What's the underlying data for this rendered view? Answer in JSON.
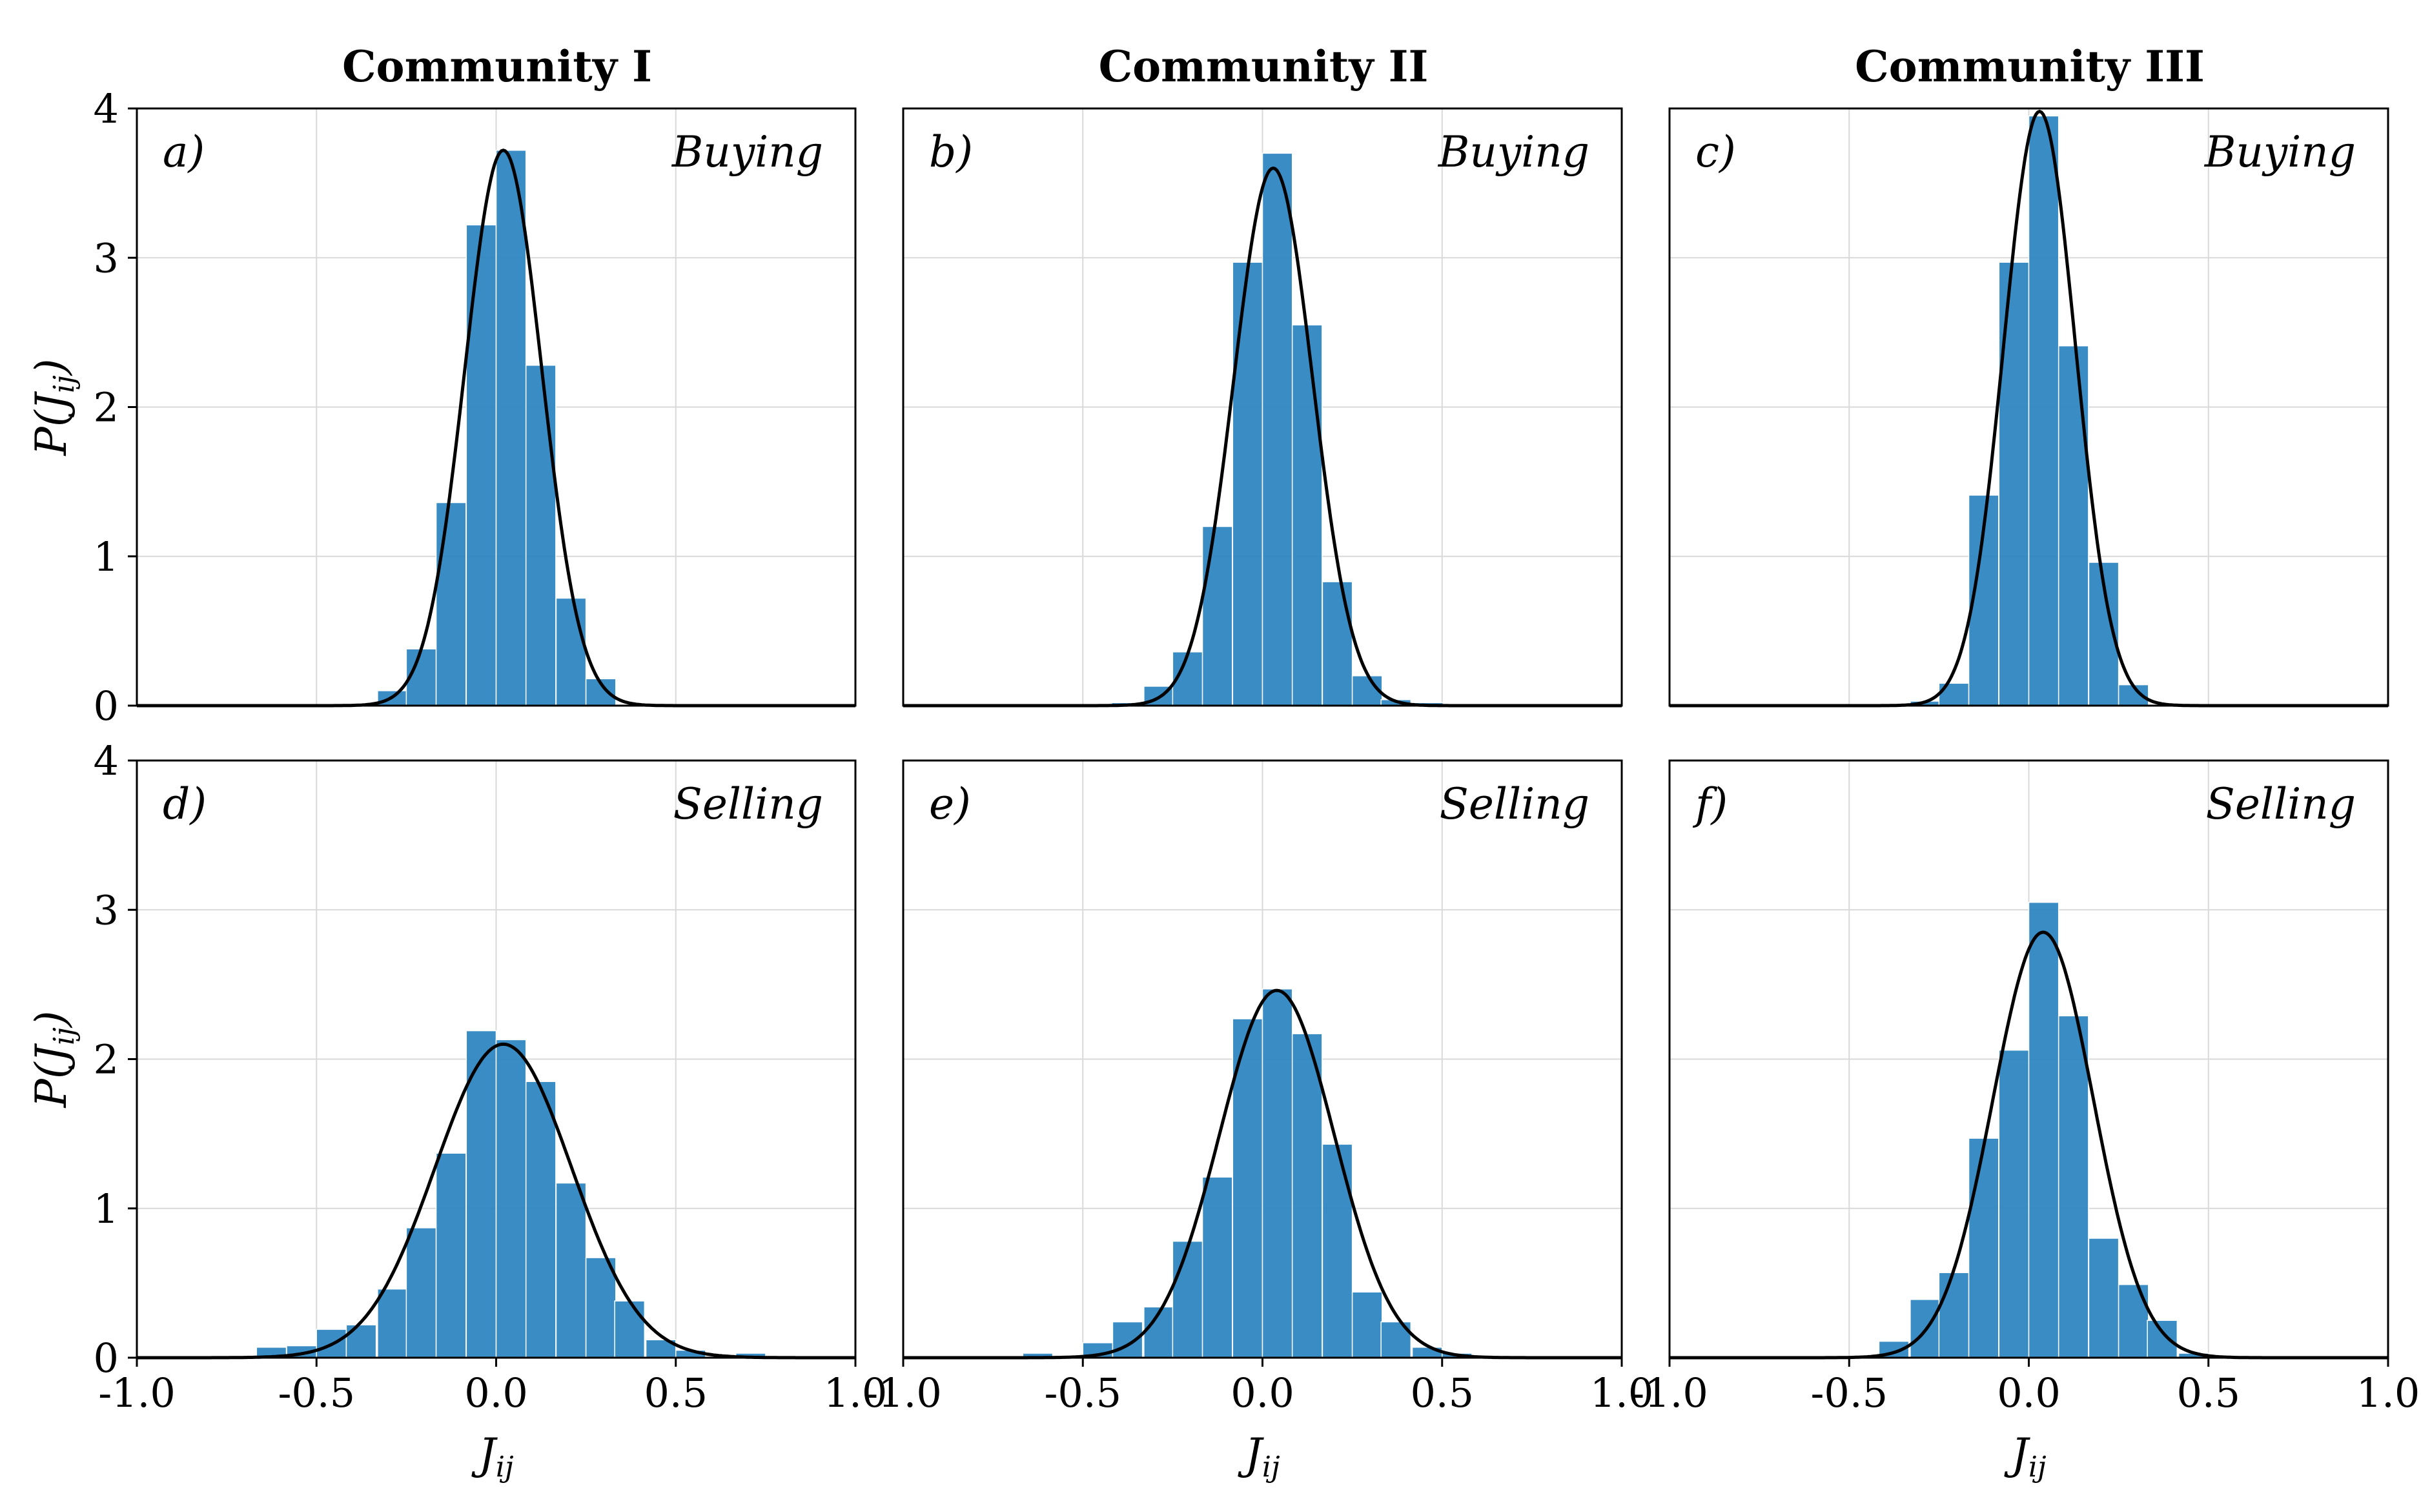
{
  "chart_data": {
    "type": "bar",
    "title": "",
    "column_titles": [
      "Community I",
      "Community II",
      "Community III"
    ],
    "xlabel": "J",
    "xlabel_sub": "ij",
    "ylabel_pre": "P(J",
    "ylabel_sub": "ij",
    "ylabel_post": ")",
    "xlim": [
      -1.0,
      1.0
    ],
    "ylim": [
      0,
      4
    ],
    "xticks": [
      -1.0,
      -0.5,
      0.0,
      0.5,
      1.0
    ],
    "xtick_labels": [
      "-1.0",
      "-0.5",
      "0.0",
      "0.5",
      "1.0"
    ],
    "yticks": [
      0,
      1,
      2,
      3,
      4
    ],
    "ytick_labels": [
      "0",
      "1",
      "2",
      "3",
      "4"
    ],
    "bin_width": 0.083,
    "grid": true,
    "bar_color": "#2e86c1",
    "fit_color": "#000000",
    "panels": [
      {
        "id": "a)",
        "label": "Buying",
        "column": "Community I",
        "row": "top",
        "bins": [
          {
            "x": -0.33,
            "h": 0.1
          },
          {
            "x": -0.25,
            "h": 0.38
          },
          {
            "x": -0.167,
            "h": 1.36
          },
          {
            "x": -0.083,
            "h": 3.22
          },
          {
            "x": 0.0,
            "h": 3.72
          },
          {
            "x": 0.083,
            "h": 2.28
          },
          {
            "x": 0.167,
            "h": 0.72
          },
          {
            "x": 0.25,
            "h": 0.18
          }
        ],
        "fit": {
          "mu": 0.02,
          "sigma": 0.107,
          "peak": 3.72
        }
      },
      {
        "id": "b)",
        "label": "Buying",
        "column": "Community II",
        "row": "top",
        "bins": [
          {
            "x": -0.42,
            "h": 0.02
          },
          {
            "x": -0.33,
            "h": 0.13
          },
          {
            "x": -0.25,
            "h": 0.36
          },
          {
            "x": -0.167,
            "h": 1.2
          },
          {
            "x": -0.083,
            "h": 2.97
          },
          {
            "x": 0.0,
            "h": 3.7
          },
          {
            "x": 0.083,
            "h": 2.55
          },
          {
            "x": 0.167,
            "h": 0.83
          },
          {
            "x": 0.25,
            "h": 0.2
          },
          {
            "x": 0.33,
            "h": 0.04
          },
          {
            "x": 0.42,
            "h": 0.02
          }
        ],
        "fit": {
          "mu": 0.03,
          "sigma": 0.11,
          "peak": 3.6
        }
      },
      {
        "id": "c)",
        "label": "Buying",
        "column": "Community III",
        "row": "top",
        "bins": [
          {
            "x": -0.33,
            "h": 0.03
          },
          {
            "x": -0.25,
            "h": 0.15
          },
          {
            "x": -0.167,
            "h": 1.41
          },
          {
            "x": -0.083,
            "h": 2.97
          },
          {
            "x": 0.0,
            "h": 3.95
          },
          {
            "x": 0.083,
            "h": 2.41
          },
          {
            "x": 0.167,
            "h": 0.96
          },
          {
            "x": 0.25,
            "h": 0.14
          }
        ],
        "fit": {
          "mu": 0.03,
          "sigma": 0.1,
          "peak": 3.98
        }
      },
      {
        "id": "d)",
        "label": "Selling",
        "column": "Community I",
        "row": "bottom",
        "bins": [
          {
            "x": -0.75,
            "h": 0.01
          },
          {
            "x": -0.667,
            "h": 0.07
          },
          {
            "x": -0.583,
            "h": 0.08
          },
          {
            "x": -0.5,
            "h": 0.19
          },
          {
            "x": -0.417,
            "h": 0.22
          },
          {
            "x": -0.33,
            "h": 0.46
          },
          {
            "x": -0.25,
            "h": 0.87
          },
          {
            "x": -0.167,
            "h": 1.37
          },
          {
            "x": -0.083,
            "h": 2.19
          },
          {
            "x": 0.0,
            "h": 2.13
          },
          {
            "x": 0.083,
            "h": 1.85
          },
          {
            "x": 0.167,
            "h": 1.17
          },
          {
            "x": 0.25,
            "h": 0.67
          },
          {
            "x": 0.33,
            "h": 0.38
          },
          {
            "x": 0.417,
            "h": 0.12
          },
          {
            "x": 0.5,
            "h": 0.05
          },
          {
            "x": 0.583,
            "h": 0.01
          },
          {
            "x": 0.667,
            "h": 0.03
          }
        ],
        "fit": {
          "mu": 0.02,
          "sigma": 0.19,
          "peak": 2.1
        }
      },
      {
        "id": "e)",
        "label": "Selling",
        "column": "Community II",
        "row": "bottom",
        "bins": [
          {
            "x": -0.75,
            "h": 0.01
          },
          {
            "x": -0.667,
            "h": 0.03
          },
          {
            "x": -0.583,
            "h": 0.01
          },
          {
            "x": -0.5,
            "h": 0.1
          },
          {
            "x": -0.417,
            "h": 0.24
          },
          {
            "x": -0.33,
            "h": 0.34
          },
          {
            "x": -0.25,
            "h": 0.78
          },
          {
            "x": -0.167,
            "h": 1.21
          },
          {
            "x": -0.083,
            "h": 2.27
          },
          {
            "x": 0.0,
            "h": 2.47
          },
          {
            "x": 0.083,
            "h": 2.17
          },
          {
            "x": 0.167,
            "h": 1.43
          },
          {
            "x": 0.25,
            "h": 0.44
          },
          {
            "x": 0.33,
            "h": 0.24
          },
          {
            "x": 0.417,
            "h": 0.07
          },
          {
            "x": 0.5,
            "h": 0.03
          }
        ],
        "fit": {
          "mu": 0.04,
          "sigma": 0.16,
          "peak": 2.46
        }
      },
      {
        "id": "f)",
        "label": "Selling",
        "column": "Community III",
        "row": "bottom",
        "bins": [
          {
            "x": -0.917,
            "h": 0.01
          },
          {
            "x": -0.667,
            "h": 0.01
          },
          {
            "x": -0.5,
            "h": 0.01
          },
          {
            "x": -0.417,
            "h": 0.11
          },
          {
            "x": -0.33,
            "h": 0.39
          },
          {
            "x": -0.25,
            "h": 0.57
          },
          {
            "x": -0.167,
            "h": 1.47
          },
          {
            "x": -0.083,
            "h": 2.06
          },
          {
            "x": 0.0,
            "h": 3.05
          },
          {
            "x": 0.083,
            "h": 2.29
          },
          {
            "x": 0.167,
            "h": 0.8
          },
          {
            "x": 0.25,
            "h": 0.49
          },
          {
            "x": 0.33,
            "h": 0.25
          },
          {
            "x": 0.417,
            "h": 0.03
          },
          {
            "x": 0.5,
            "h": 0.01
          }
        ],
        "fit": {
          "mu": 0.04,
          "sigma": 0.14,
          "peak": 2.85
        }
      }
    ]
  }
}
